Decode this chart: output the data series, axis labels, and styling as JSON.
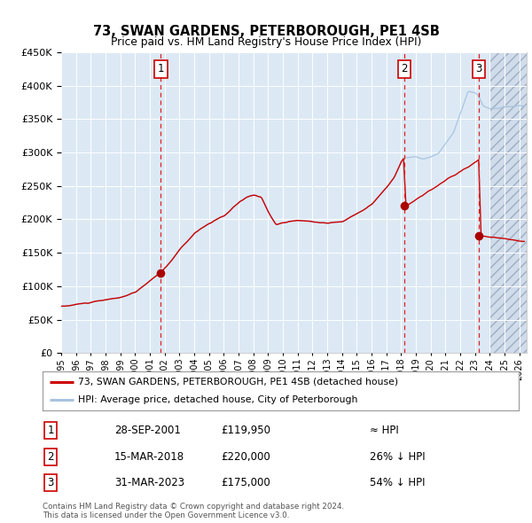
{
  "title": "73, SWAN GARDENS, PETERBOROUGH, PE1 4SB",
  "subtitle": "Price paid vs. HM Land Registry's House Price Index (HPI)",
  "legend_line1": "73, SWAN GARDENS, PETERBOROUGH, PE1 4SB (detached house)",
  "legend_line2": "HPI: Average price, detached house, City of Peterborough",
  "sale1_date": "28-SEP-2001",
  "sale1_price": 119950,
  "sale1_hpi": "≈ HPI",
  "sale2_date": "15-MAR-2018",
  "sale2_price": 220000,
  "sale2_hpi": "26% ↓ HPI",
  "sale3_date": "31-MAR-2023",
  "sale3_price": 175000,
  "sale3_hpi": "54% ↓ HPI",
  "footnote1": "Contains HM Land Registry data © Crown copyright and database right 2024.",
  "footnote2": "This data is licensed under the Open Government Licence v3.0.",
  "hpi_color": "#a8c4e0",
  "price_color": "#cc0000",
  "bg_color": "#dce9f5",
  "ylim": [
    0,
    450000
  ],
  "xlim_start": 1995.0,
  "xlim_end": 2026.5,
  "sale1_x": 2001.75,
  "sale2_x": 2018.2,
  "sale3_x": 2023.25,
  "hatch_start": 2024.0
}
